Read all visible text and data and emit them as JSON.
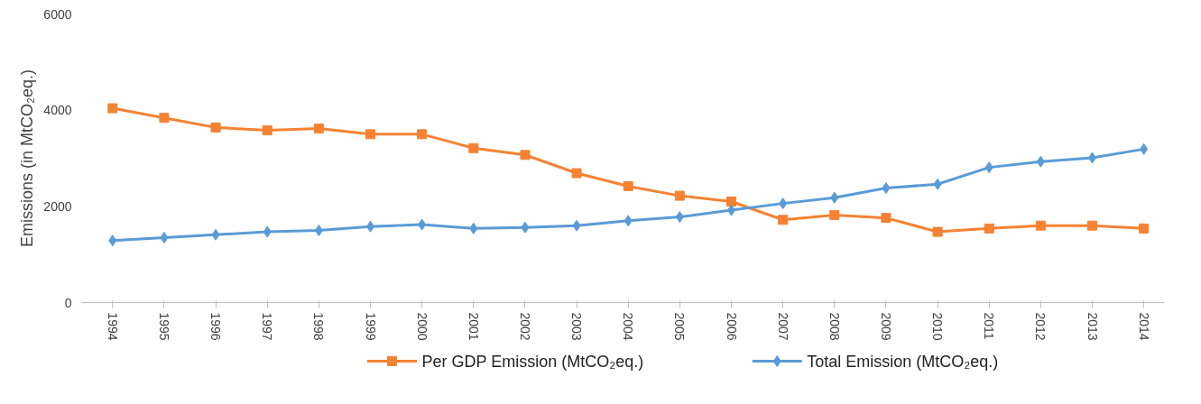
{
  "chart_data": {
    "type": "line",
    "ylabel": "Emissions (in MtCO₂eq.)",
    "categories": [
      "1994",
      "1995",
      "1996",
      "1997",
      "1998",
      "1999",
      "2000",
      "2001",
      "2002",
      "2003",
      "2004",
      "2005",
      "2006",
      "2007",
      "2008",
      "2009",
      "2010",
      "2011",
      "2012",
      "2013",
      "2014"
    ],
    "series": [
      {
        "name": "Per GDP Emission (MtCO₂eq.)",
        "color": "#f58233",
        "marker": "square",
        "values": [
          4040,
          3840,
          3640,
          3580,
          3620,
          3500,
          3500,
          3210,
          3070,
          2690,
          2420,
          2220,
          2100,
          1720,
          1820,
          1760,
          1470,
          1540,
          1600,
          1600,
          1540
        ]
      },
      {
        "name": "Total Emission (MtCO₂eq.)",
        "color": "#5b9bd5",
        "marker": "diamond",
        "values": [
          1290,
          1350,
          1410,
          1470,
          1500,
          1580,
          1620,
          1540,
          1560,
          1600,
          1700,
          1780,
          1920,
          2060,
          2180,
          2380,
          2460,
          2810,
          2930,
          3010,
          3190
        ]
      }
    ],
    "ylim": [
      0,
      6000
    ],
    "yticks": [
      0,
      2000,
      4000,
      6000
    ],
    "grid": false,
    "legend": "bottom"
  }
}
